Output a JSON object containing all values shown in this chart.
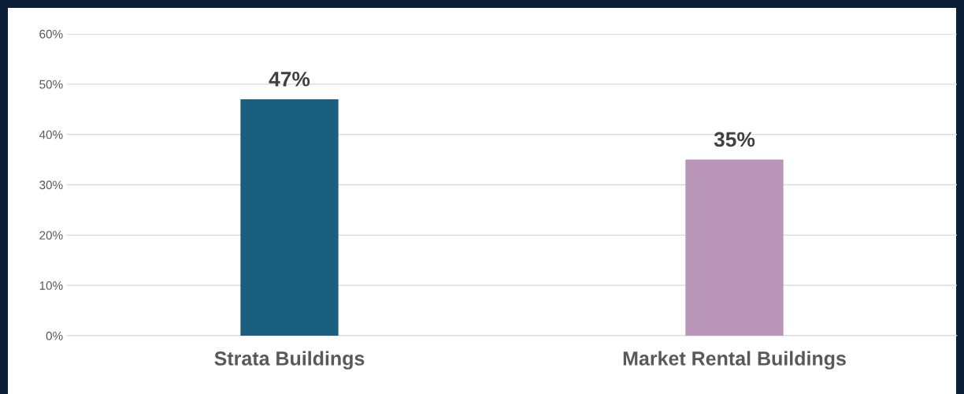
{
  "chart_data": {
    "type": "bar",
    "categories": [
      "Strata Buildings",
      "Market Rental Buildings"
    ],
    "values": [
      47,
      35
    ],
    "colors": [
      "#1a5f80",
      "#b995b8"
    ],
    "value_labels": [
      "47%",
      "35%"
    ],
    "ylim": [
      0,
      60
    ],
    "yticks": [
      {
        "value": 0,
        "label": "0%"
      },
      {
        "value": 10,
        "label": "10%"
      },
      {
        "value": 20,
        "label": "20%"
      },
      {
        "value": 30,
        "label": "30%"
      },
      {
        "value": 40,
        "label": "40%"
      },
      {
        "value": 50,
        "label": "50%"
      },
      {
        "value": 60,
        "label": "60%"
      }
    ],
    "grid": "y",
    "legend": false
  }
}
